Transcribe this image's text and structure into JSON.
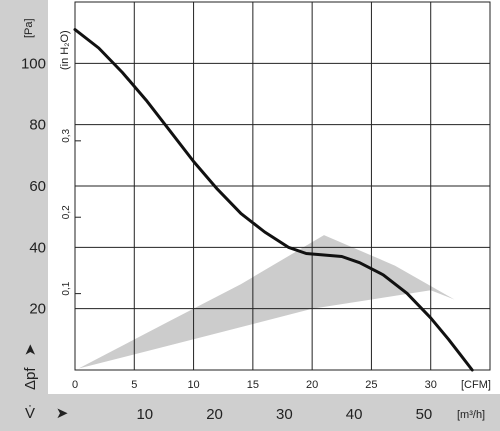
{
  "chart_data": {
    "type": "line",
    "y_left": {
      "unit": "[Pa]",
      "ticks": [
        20,
        40,
        60,
        80,
        100
      ],
      "range": [
        0,
        120
      ]
    },
    "y_inch": {
      "unit": "(in H₂O)",
      "ticks": [
        "0,1",
        "0,2",
        "0,3"
      ]
    },
    "x_cfm": {
      "unit": "[CFM]",
      "ticks": [
        0,
        5,
        10,
        15,
        20,
        25,
        30
      ],
      "range": [
        0,
        35
      ]
    },
    "x_m3h": {
      "unit": "[m³/h]",
      "ticks": [
        10,
        20,
        30,
        40,
        50
      ]
    },
    "symbols": {
      "pressure": "Δpf",
      "flow": "V̇"
    },
    "grid": true,
    "series": [
      {
        "x": [
          0,
          2,
          4,
          6,
          8,
          10,
          12,
          14,
          16,
          18,
          19.5,
          21,
          22.5,
          24,
          26,
          28,
          30,
          31.5,
          32.5,
          33.5
        ],
        "y": [
          111,
          105,
          97,
          88,
          78,
          68,
          59,
          51,
          45,
          40,
          38,
          37.5,
          37,
          35,
          31,
          25,
          17,
          10,
          5,
          0
        ]
      }
    ],
    "operating_region": [
      [
        0.3,
        0.5
      ],
      [
        10,
        10
      ],
      [
        20,
        20
      ],
      [
        30,
        26
      ],
      [
        32,
        23
      ],
      [
        27,
        34
      ],
      [
        21,
        44
      ],
      [
        14,
        28
      ],
      [
        8,
        16
      ],
      [
        0.3,
        0.5
      ]
    ]
  }
}
